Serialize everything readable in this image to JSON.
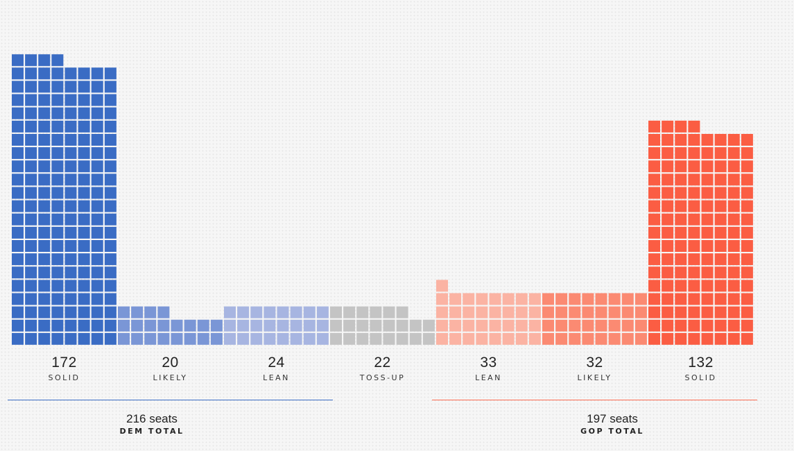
{
  "chart_data": {
    "type": "bar",
    "subtype": "waffle-column",
    "categories": [
      "SOLID",
      "LIKELY",
      "LEAN",
      "TOSS-UP",
      "LEAN",
      "LIKELY",
      "SOLID"
    ],
    "values": [
      172,
      20,
      24,
      22,
      33,
      32,
      132
    ],
    "colors": [
      "#3a6cc4",
      "#7a96d6",
      "#a7b5e1",
      "#c4c4c4",
      "#fbb3a3",
      "#fb8a72",
      "#fb5d43"
    ],
    "columns": [
      {
        "value": "172",
        "rating": "SOLID"
      },
      {
        "value": "20",
        "rating": "LIKELY"
      },
      {
        "value": "24",
        "rating": "LEAN"
      },
      {
        "value": "22",
        "rating": "TOSS-UP"
      },
      {
        "value": "33",
        "rating": "LEAN"
      },
      {
        "value": "32",
        "rating": "LIKELY"
      },
      {
        "value": "132",
        "rating": "SOLID"
      }
    ],
    "totals": [
      {
        "seats": "216 seats",
        "name": "DEM TOTAL",
        "color": "#3a6cc4",
        "value": 216
      },
      {
        "seats": "197 seats",
        "name": "GOP TOTAL",
        "color": "#fb6a50",
        "value": 197
      }
    ],
    "grid": false
  }
}
